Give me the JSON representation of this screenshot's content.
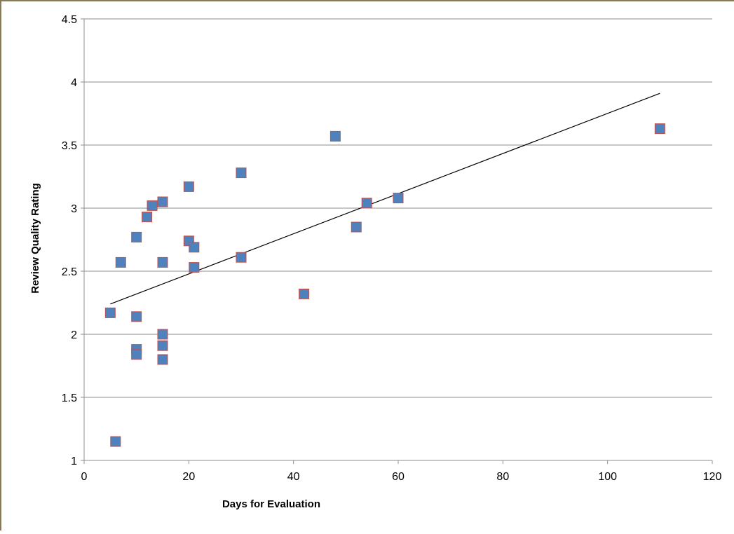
{
  "chart_data": {
    "type": "scatter",
    "xlabel": "Days for Evaluation",
    "ylabel": "Review Quality Rating",
    "xlim": [
      0,
      120
    ],
    "ylim": [
      1,
      4.5
    ],
    "x_ticks": [
      "0",
      "20",
      "40",
      "60",
      "80",
      "100",
      "120"
    ],
    "y_ticks": [
      "1",
      "1.5",
      "2",
      "2.5",
      "3",
      "3.5",
      "4",
      "4.5"
    ],
    "grid": "horizontal",
    "legend": "none",
    "marker": "square",
    "marker_fill": "#4f81bd",
    "marker_edge": "#c0504d",
    "trendline_color": "#000000",
    "series": [
      {
        "points": [
          {
            "x": 5,
            "y": 2.17
          },
          {
            "x": 6,
            "y": 1.15
          },
          {
            "x": 7,
            "y": 2.57
          },
          {
            "x": 10,
            "y": 2.77
          },
          {
            "x": 10,
            "y": 2.14
          },
          {
            "x": 10,
            "y": 1.88
          },
          {
            "x": 10,
            "y": 1.84
          },
          {
            "x": 12,
            "y": 2.93
          },
          {
            "x": 13,
            "y": 3.02
          },
          {
            "x": 15,
            "y": 3.05
          },
          {
            "x": 15,
            "y": 2.57
          },
          {
            "x": 15,
            "y": 2.0
          },
          {
            "x": 15,
            "y": 1.91
          },
          {
            "x": 15,
            "y": 1.8
          },
          {
            "x": 20,
            "y": 3.17
          },
          {
            "x": 20,
            "y": 2.74
          },
          {
            "x": 21,
            "y": 2.69
          },
          {
            "x": 21,
            "y": 2.53
          },
          {
            "x": 30,
            "y": 3.28
          },
          {
            "x": 30,
            "y": 2.61
          },
          {
            "x": 42,
            "y": 2.32
          },
          {
            "x": 48,
            "y": 3.57
          },
          {
            "x": 52,
            "y": 2.85
          },
          {
            "x": 54,
            "y": 3.04
          },
          {
            "x": 60,
            "y": 3.08
          },
          {
            "x": 110,
            "y": 3.63
          }
        ]
      }
    ],
    "trendline": {
      "x": [
        5,
        110
      ],
      "y": [
        2.24,
        3.91
      ]
    }
  }
}
